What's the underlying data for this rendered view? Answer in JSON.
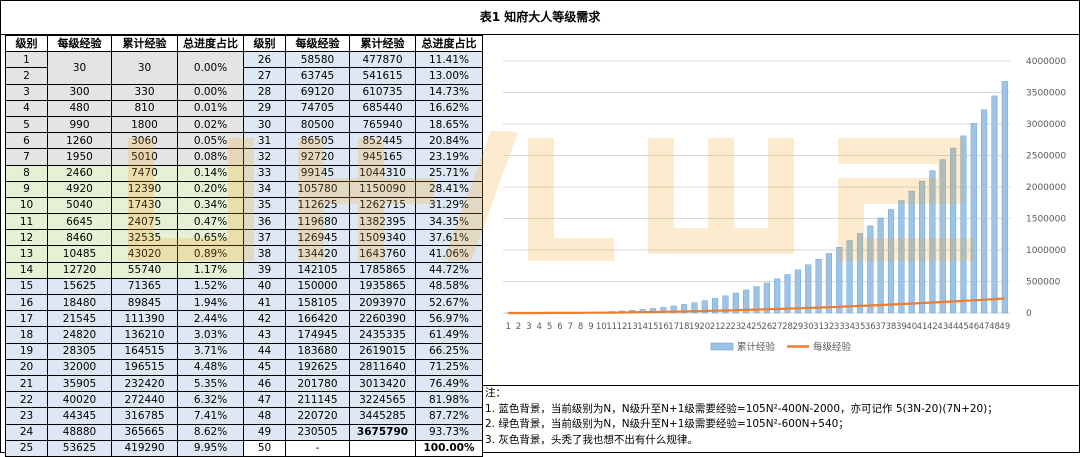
{
  "title": "表1 知府大人等级需求",
  "headers": [
    "级别",
    "每级经验",
    "累计经验",
    "总进度占比"
  ],
  "colors": {
    "gray": "#e4e4e4",
    "green": "#e6f0d4",
    "blue": "#dde8f4",
    "bar": "#9dc3e6",
    "line": "#ed7d31",
    "watermark": "#f5a623"
  },
  "left_rows": [
    {
      "level": "1",
      "exp": "30",
      "total": "30",
      "pct": "0.00%",
      "group": "gray"
    },
    {
      "level": "2",
      "exp": "",
      "total": "",
      "pct": "",
      "group": "gray"
    },
    {
      "level": "3",
      "exp": "300",
      "total": "330",
      "pct": "0.00%",
      "group": "gray"
    },
    {
      "level": "4",
      "exp": "480",
      "total": "810",
      "pct": "0.01%",
      "group": "gray"
    },
    {
      "level": "5",
      "exp": "990",
      "total": "1800",
      "pct": "0.02%",
      "group": "gray"
    },
    {
      "level": "6",
      "exp": "1260",
      "total": "3060",
      "pct": "0.05%",
      "group": "gray"
    },
    {
      "level": "7",
      "exp": "1950",
      "total": "5010",
      "pct": "0.08%",
      "group": "gray"
    },
    {
      "level": "8",
      "exp": "2460",
      "total": "7470",
      "pct": "0.14%",
      "group": "green"
    },
    {
      "level": "9",
      "exp": "4920",
      "total": "12390",
      "pct": "0.20%",
      "group": "green"
    },
    {
      "level": "10",
      "exp": "5040",
      "total": "17430",
      "pct": "0.34%",
      "group": "green"
    },
    {
      "level": "11",
      "exp": "6645",
      "total": "24075",
      "pct": "0.47%",
      "group": "green"
    },
    {
      "level": "12",
      "exp": "8460",
      "total": "32535",
      "pct": "0.65%",
      "group": "green"
    },
    {
      "level": "13",
      "exp": "10485",
      "total": "43020",
      "pct": "0.89%",
      "group": "green"
    },
    {
      "level": "14",
      "exp": "12720",
      "total": "55740",
      "pct": "1.17%",
      "group": "green"
    },
    {
      "level": "15",
      "exp": "15625",
      "total": "71365",
      "pct": "1.52%",
      "group": "blue"
    },
    {
      "level": "16",
      "exp": "18480",
      "total": "89845",
      "pct": "1.94%",
      "group": "blue"
    },
    {
      "level": "17",
      "exp": "21545",
      "total": "111390",
      "pct": "2.44%",
      "group": "blue"
    },
    {
      "level": "18",
      "exp": "24820",
      "total": "136210",
      "pct": "3.03%",
      "group": "blue"
    },
    {
      "level": "19",
      "exp": "28305",
      "total": "164515",
      "pct": "3.71%",
      "group": "blue"
    },
    {
      "level": "20",
      "exp": "32000",
      "total": "196515",
      "pct": "4.48%",
      "group": "blue"
    },
    {
      "level": "21",
      "exp": "35905",
      "total": "232420",
      "pct": "5.35%",
      "group": "blue"
    },
    {
      "level": "22",
      "exp": "40020",
      "total": "272440",
      "pct": "6.32%",
      "group": "blue"
    },
    {
      "level": "23",
      "exp": "44345",
      "total": "316785",
      "pct": "7.41%",
      "group": "blue"
    },
    {
      "level": "24",
      "exp": "48880",
      "total": "365665",
      "pct": "8.62%",
      "group": "blue"
    },
    {
      "level": "25",
      "exp": "53625",
      "total": "419290",
      "pct": "9.95%",
      "group": "blue"
    }
  ],
  "right_rows": [
    {
      "level": "26",
      "exp": "58580",
      "total": "477870",
      "pct": "11.41%",
      "group": "blue"
    },
    {
      "level": "27",
      "exp": "63745",
      "total": "541615",
      "pct": "13.00%",
      "group": "blue"
    },
    {
      "level": "28",
      "exp": "69120",
      "total": "610735",
      "pct": "14.73%",
      "group": "blue"
    },
    {
      "level": "29",
      "exp": "74705",
      "total": "685440",
      "pct": "16.62%",
      "group": "blue"
    },
    {
      "level": "30",
      "exp": "80500",
      "total": "765940",
      "pct": "18.65%",
      "group": "blue"
    },
    {
      "level": "31",
      "exp": "86505",
      "total": "852445",
      "pct": "20.84%",
      "group": "blue"
    },
    {
      "level": "32",
      "exp": "92720",
      "total": "945165",
      "pct": "23.19%",
      "group": "blue"
    },
    {
      "level": "33",
      "exp": "99145",
      "total": "1044310",
      "pct": "25.71%",
      "group": "blue"
    },
    {
      "level": "34",
      "exp": "105780",
      "total": "1150090",
      "pct": "28.41%",
      "group": "blue"
    },
    {
      "level": "35",
      "exp": "112625",
      "total": "1262715",
      "pct": "31.29%",
      "group": "blue"
    },
    {
      "level": "36",
      "exp": "119680",
      "total": "1382395",
      "pct": "34.35%",
      "group": "blue"
    },
    {
      "level": "37",
      "exp": "126945",
      "total": "1509340",
      "pct": "37.61%",
      "group": "blue"
    },
    {
      "level": "38",
      "exp": "134420",
      "total": "1643760",
      "pct": "41.06%",
      "group": "blue"
    },
    {
      "level": "39",
      "exp": "142105",
      "total": "1785865",
      "pct": "44.72%",
      "group": "blue"
    },
    {
      "level": "40",
      "exp": "150000",
      "total": "1935865",
      "pct": "48.58%",
      "group": "blue"
    },
    {
      "level": "41",
      "exp": "158105",
      "total": "2093970",
      "pct": "52.67%",
      "group": "blue"
    },
    {
      "level": "42",
      "exp": "166420",
      "total": "2260390",
      "pct": "56.97%",
      "group": "blue"
    },
    {
      "level": "43",
      "exp": "174945",
      "total": "2435335",
      "pct": "61.49%",
      "group": "blue"
    },
    {
      "level": "44",
      "exp": "183680",
      "total": "2619015",
      "pct": "66.25%",
      "group": "blue"
    },
    {
      "level": "45",
      "exp": "192625",
      "total": "2811640",
      "pct": "71.25%",
      "group": "blue"
    },
    {
      "level": "46",
      "exp": "201780",
      "total": "3013420",
      "pct": "76.49%",
      "group": "blue"
    },
    {
      "level": "47",
      "exp": "211145",
      "total": "3224565",
      "pct": "81.98%",
      "group": "blue"
    },
    {
      "level": "48",
      "exp": "220720",
      "total": "3445285",
      "pct": "87.72%",
      "group": "blue"
    },
    {
      "level": "49",
      "exp": "230505",
      "total": "3675790",
      "pct": "93.73%",
      "group": "blue",
      "bold_total": true
    },
    {
      "level": "50",
      "exp": "-",
      "total": "",
      "pct": "100.00%",
      "group": "white",
      "bold_pct": true
    }
  ],
  "chart_data": {
    "type": "bar",
    "categories": [
      "1",
      "2",
      "3",
      "4",
      "5",
      "6",
      "7",
      "8",
      "9",
      "10",
      "11",
      "12",
      "13",
      "14",
      "15",
      "16",
      "17",
      "18",
      "19",
      "20",
      "21",
      "22",
      "23",
      "24",
      "25",
      "26",
      "27",
      "28",
      "29",
      "30",
      "31",
      "32",
      "33",
      "34",
      "35",
      "36",
      "37",
      "38",
      "39",
      "40",
      "41",
      "42",
      "43",
      "44",
      "45",
      "46",
      "47",
      "48",
      "49"
    ],
    "series": [
      {
        "name": "累计经验",
        "type": "bar",
        "values": [
          30,
          0,
          330,
          810,
          1800,
          3060,
          5010,
          7470,
          12390,
          17430,
          24075,
          32535,
          43020,
          55740,
          71365,
          89845,
          111390,
          136210,
          164515,
          196515,
          232420,
          272440,
          316785,
          365665,
          419290,
          477870,
          541615,
          610735,
          685440,
          765940,
          852445,
          945165,
          1044310,
          1150090,
          1262715,
          1382395,
          1509340,
          1643760,
          1785865,
          1935865,
          2093970,
          2260390,
          2435335,
          2619015,
          2811640,
          3013420,
          3224565,
          3445285,
          3675790
        ]
      },
      {
        "name": "每级经验",
        "type": "line",
        "values": [
          30,
          0,
          300,
          480,
          990,
          1260,
          1950,
          2460,
          4920,
          5040,
          6645,
          8460,
          10485,
          12720,
          15625,
          18480,
          21545,
          24820,
          28305,
          32000,
          35905,
          40020,
          44345,
          48880,
          53625,
          58580,
          63745,
          69120,
          74705,
          80500,
          86505,
          92720,
          99145,
          105780,
          112625,
          119680,
          126945,
          134420,
          142105,
          150000,
          158105,
          166420,
          174945,
          183680,
          192625,
          201780,
          211145,
          220720,
          230505
        ]
      }
    ],
    "y_ticks": [
      "0",
      "500000",
      "1000000",
      "1500000",
      "2000000",
      "2500000",
      "3000000",
      "3500000",
      "4000000"
    ],
    "ylim": [
      0,
      4000000
    ],
    "y_axis_side": "right",
    "grid": true,
    "legend": "bottom"
  },
  "notes": [
    "注：",
    "1. 蓝色背景，当前级别为N，N级升至N+1级需要经验=105N²-400N-2000，亦可记作 5(3N-20)(7N+20)；",
    "2. 绿色背景，当前级别为N，N级升至N+1级需要经验=105N²-600N+540；",
    "3. 灰色背景，头秃了我也想不出有什么规律。"
  ]
}
